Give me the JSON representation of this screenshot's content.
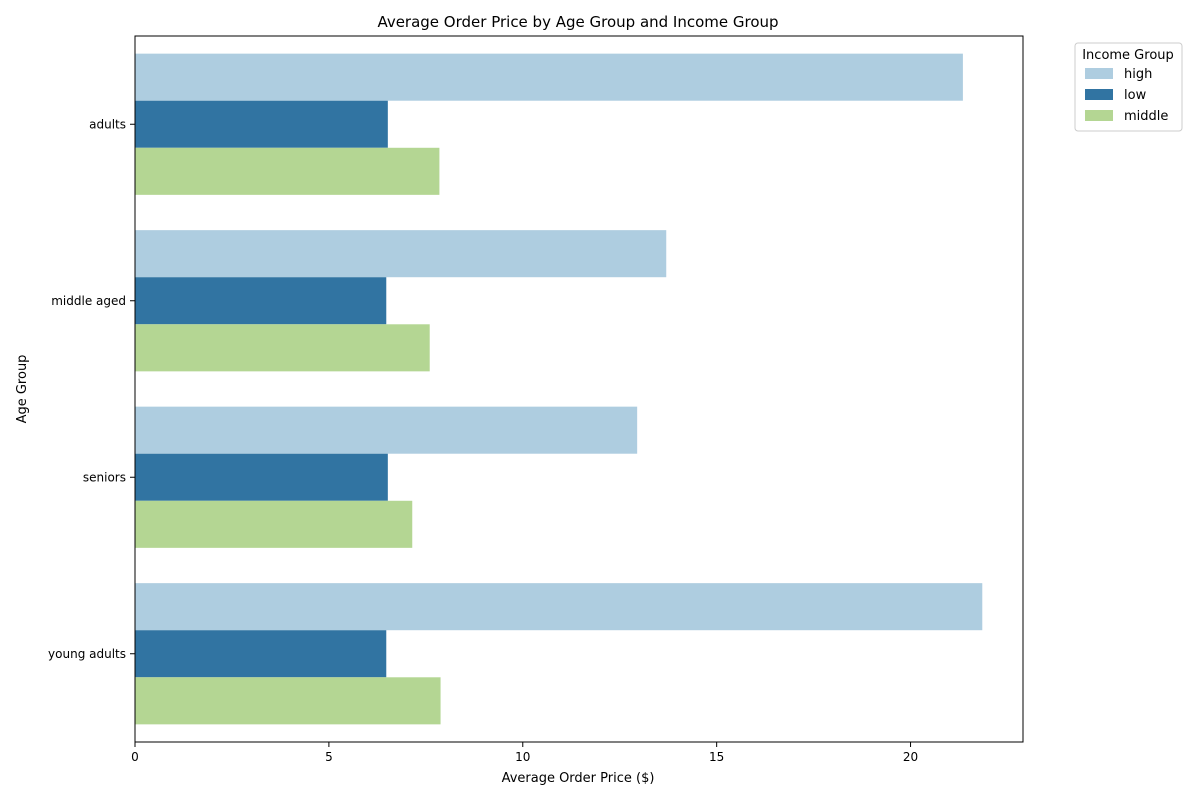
{
  "chart_data": {
    "type": "bar",
    "orientation": "horizontal",
    "title": "Average Order Price by Age Group and Income Group",
    "xlabel": "Average Order Price ($)",
    "ylabel": "Age Group",
    "xlim": [
      0,
      22.9
    ],
    "xticks": [
      0,
      5,
      10,
      15,
      20
    ],
    "categories": [
      "adults",
      "middle aged",
      "seniors",
      "young adults"
    ],
    "series": [
      {
        "name": "high",
        "color": "#aecde0",
        "values": [
          21.35,
          13.7,
          12.95,
          21.85
        ]
      },
      {
        "name": "low",
        "color": "#3174a2",
        "values": [
          6.52,
          6.48,
          6.52,
          6.48
        ]
      },
      {
        "name": "middle",
        "color": "#b4d693",
        "values": [
          7.85,
          7.6,
          7.15,
          7.88
        ]
      }
    ],
    "legend": {
      "title": "Income Group",
      "position": "outside-top-right"
    },
    "grid": false
  }
}
